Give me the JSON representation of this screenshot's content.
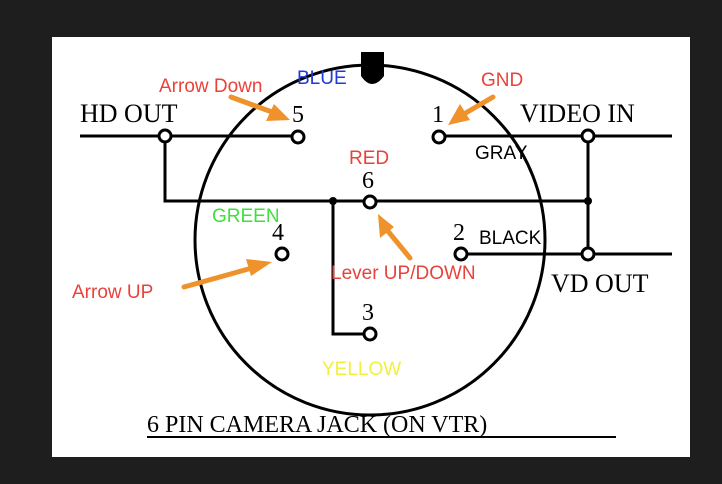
{
  "diagram": {
    "title": "6 PIN CAMERA JACK (ON VTR)",
    "connectors": {
      "hd_out": "HD OUT",
      "video_in": "VIDEO IN",
      "vd_out": "VD OUT"
    },
    "pins": {
      "p1": "1",
      "p2": "2",
      "p3": "3",
      "p4": "4",
      "p5": "5",
      "p6": "6"
    },
    "wire_colors": {
      "blue": {
        "label": "BLUE",
        "color": "#1f3bd6"
      },
      "gray": {
        "label": "GRAY",
        "color": "#000000"
      },
      "red": {
        "label": "RED",
        "color": "#e8423b"
      },
      "green": {
        "label": "GREEN",
        "color": "#3ee03e"
      },
      "black": {
        "label": "BLACK",
        "color": "#000000"
      },
      "yellow": {
        "label": "YELLOW",
        "color": "#f2f03a"
      }
    },
    "annotations": {
      "arrow_down": "Arrow Down",
      "gnd": "GND",
      "arrow_up": "Arrow UP",
      "lever": "Lever UP/DOWN"
    },
    "annotation_color": "#e8423b",
    "arrow_color": "#f0922b"
  }
}
